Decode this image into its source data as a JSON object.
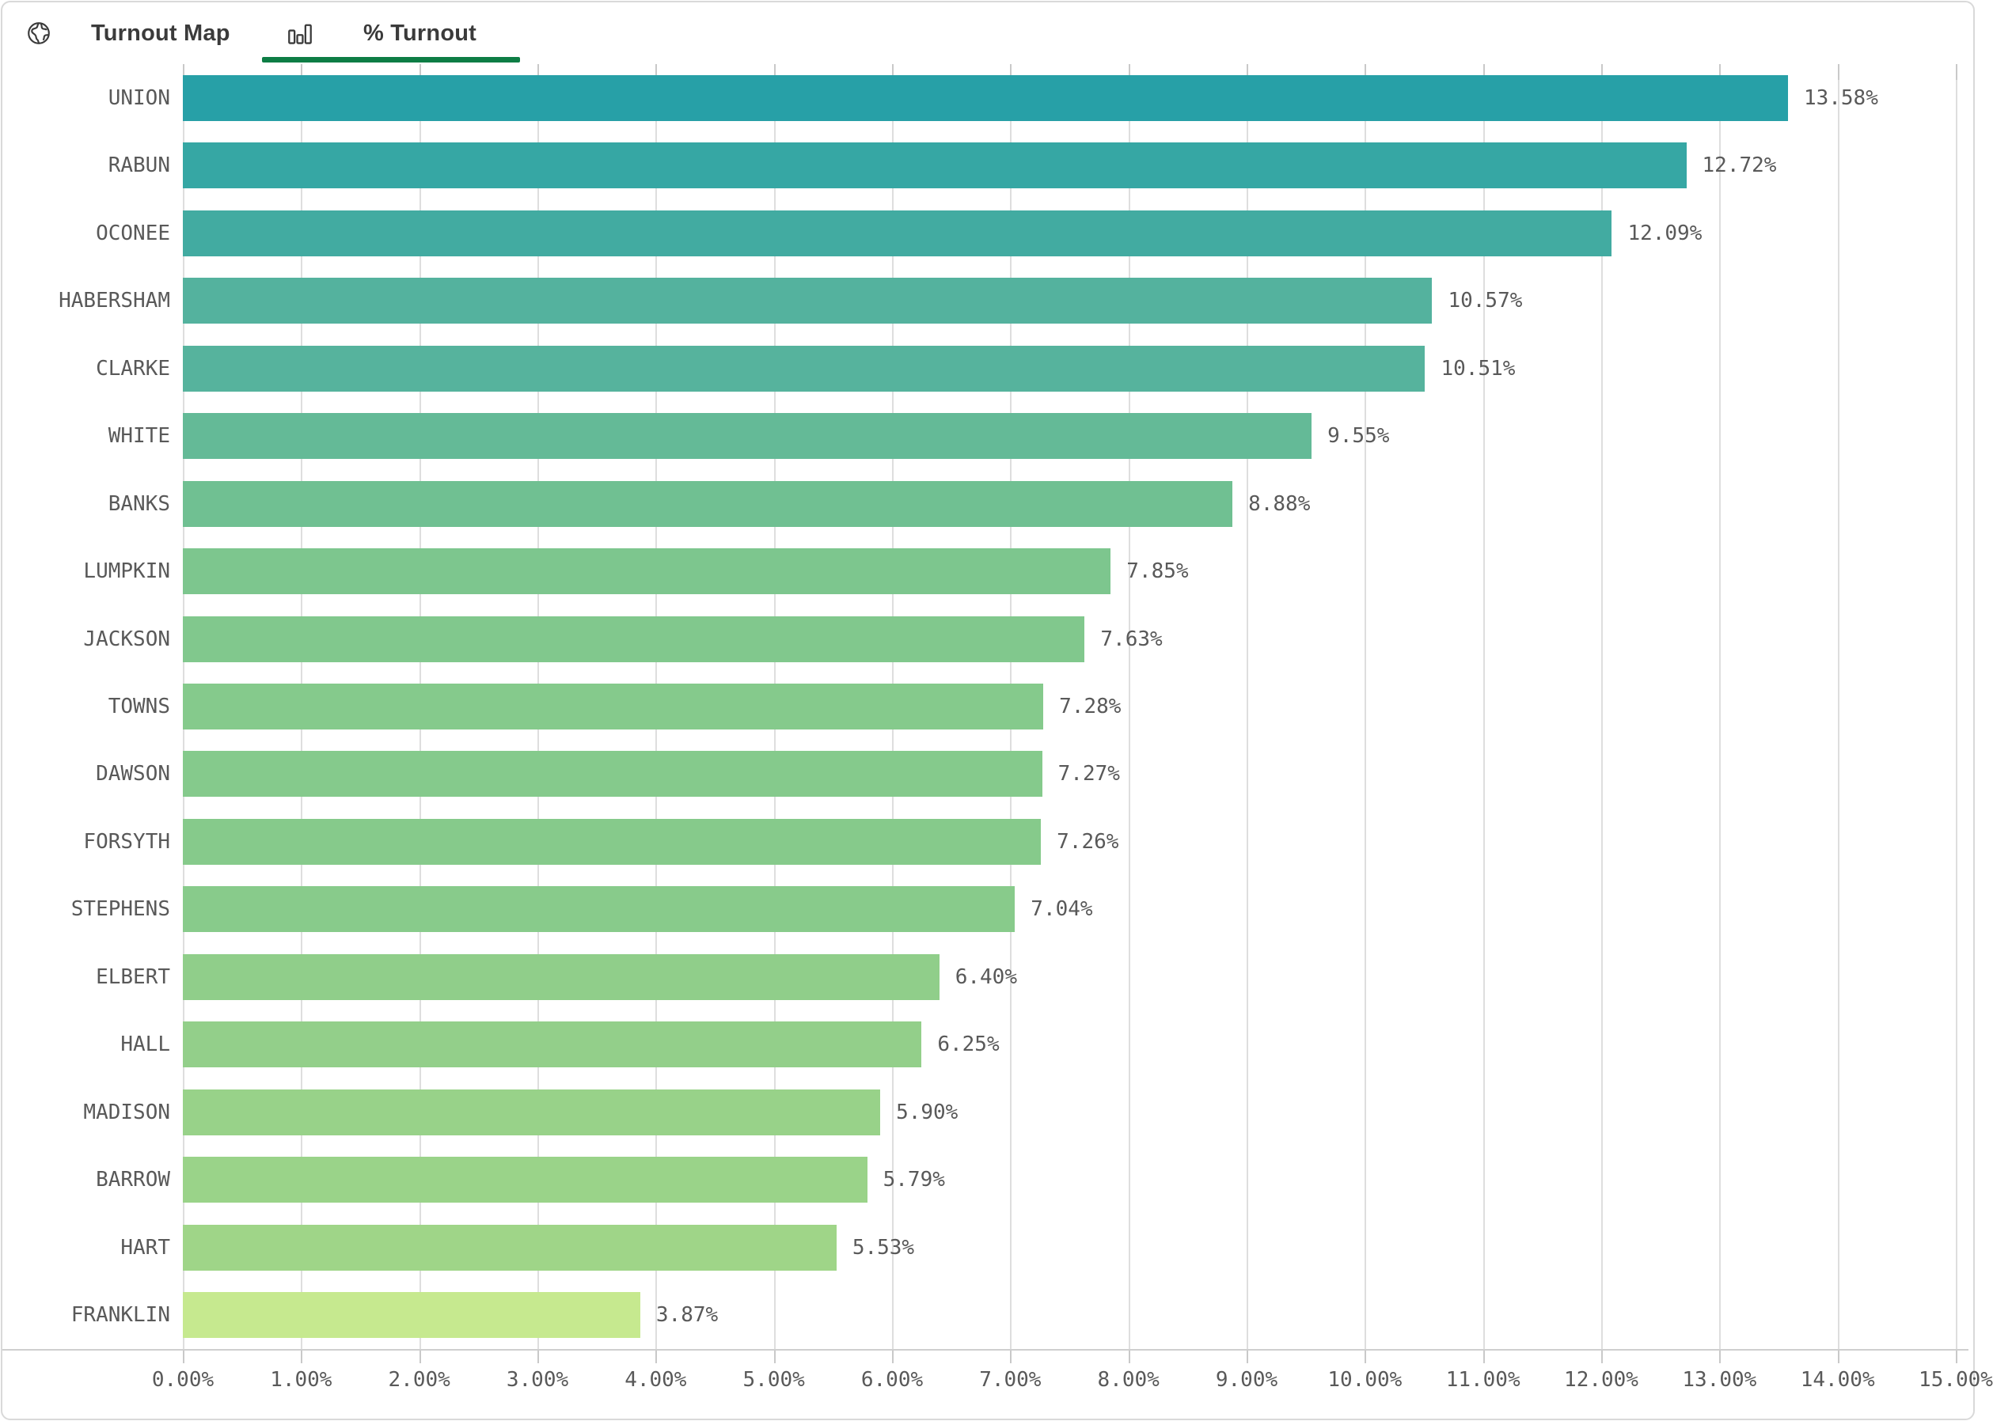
{
  "header": {
    "tabs": [
      {
        "label": "Turnout Map",
        "icon": "globe-icon",
        "active": false
      },
      {
        "label": "% Turnout",
        "icon": "bar-chart-icon",
        "active": true
      }
    ],
    "active_tab": "% Turnout",
    "underline_color": "#0d7d45",
    "text_color": "#3b3b3b"
  },
  "chart_data": {
    "type": "bar",
    "orientation": "horizontal",
    "title": "% Turnout",
    "categories": [
      "UNION",
      "RABUN",
      "OCONEE",
      "HABERSHAM",
      "CLARKE",
      "WHITE",
      "BANKS",
      "LUMPKIN",
      "JACKSON",
      "TOWNS",
      "DAWSON",
      "FORSYTH",
      "STEPHENS",
      "ELBERT",
      "HALL",
      "MADISON",
      "BARROW",
      "HART",
      "FRANKLIN"
    ],
    "values": [
      13.58,
      12.72,
      12.09,
      10.57,
      10.51,
      9.55,
      8.88,
      7.85,
      7.63,
      7.28,
      7.27,
      7.26,
      7.04,
      6.4,
      6.25,
      5.9,
      5.79,
      5.53,
      3.87
    ],
    "value_labels": [
      "13.58%",
      "12.72%",
      "12.09%",
      "10.57%",
      "10.51%",
      "9.55%",
      "8.88%",
      "7.85%",
      "7.63%",
      "7.28%",
      "7.27%",
      "7.26%",
      "7.04%",
      "6.40%",
      "6.25%",
      "5.90%",
      "5.79%",
      "5.53%",
      "3.87%"
    ],
    "bar_colors": [
      "#27a0a7",
      "#36a7a4",
      "#42aba1",
      "#54b29e",
      "#56b39d",
      "#64ba97",
      "#70c092",
      "#7dc68e",
      "#81c88d",
      "#85ca8c",
      "#85ca8c",
      "#86ca8b",
      "#88cb8b",
      "#90ce8a",
      "#93cf8a",
      "#98d289",
      "#9ad389",
      "#9fd588",
      "#c6e98f"
    ],
    "x_ticks": [
      "0.00%",
      "1.00%",
      "2.00%",
      "3.00%",
      "4.00%",
      "5.00%",
      "6.00%",
      "7.00%",
      "8.00%",
      "9.00%",
      "10.00%",
      "11.00%",
      "12.00%",
      "13.00%",
      "14.00%",
      "15.00%"
    ],
    "xlim": [
      0,
      15
    ],
    "grid": true,
    "gridline_color": "#dedede",
    "axis_label_color": "#595959",
    "legend": "none"
  }
}
